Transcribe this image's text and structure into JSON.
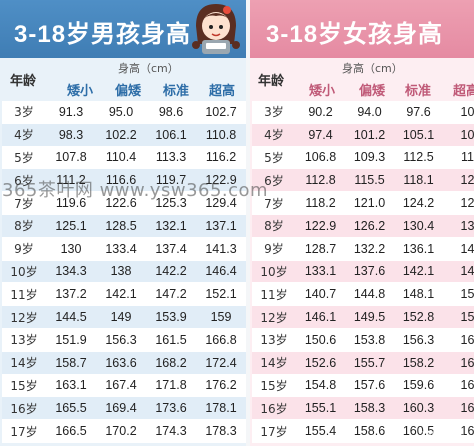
{
  "boys": {
    "title_num": "3-18",
    "title_text": "岁男孩身高",
    "age_header": "年龄",
    "height_label": "身高（cm）",
    "categories": [
      "矮小",
      "偏矮",
      "标准",
      "超高"
    ],
    "rows": [
      {
        "age": "3岁",
        "values": [
          "91.3",
          "95.0",
          "98.6",
          "102.7"
        ]
      },
      {
        "age": "4岁",
        "values": [
          "98.3",
          "102.2",
          "106.1",
          "110.8"
        ]
      },
      {
        "age": "5岁",
        "values": [
          "107.8",
          "110.4",
          "113.3",
          "116.2"
        ]
      },
      {
        "age": "6岁",
        "values": [
          "111.2",
          "116.6",
          "119.7",
          "122.9"
        ]
      },
      {
        "age": "7岁",
        "values": [
          "119.6",
          "122.6",
          "125.3",
          "129.4"
        ]
      },
      {
        "age": "8岁",
        "values": [
          "125.1",
          "128.5",
          "132.1",
          "137.1"
        ]
      },
      {
        "age": "9岁",
        "values": [
          "130",
          "133.4",
          "137.4",
          "141.3"
        ]
      },
      {
        "age": "10岁",
        "values": [
          "134.3",
          "138",
          "142.2",
          "146.4"
        ]
      },
      {
        "age": "11岁",
        "values": [
          "137.2",
          "142.1",
          "147.2",
          "152.1"
        ]
      },
      {
        "age": "12岁",
        "values": [
          "144.5",
          "149",
          "153.9",
          "159"
        ]
      },
      {
        "age": "13岁",
        "values": [
          "151.9",
          "156.3",
          "161.5",
          "166.8"
        ]
      },
      {
        "age": "14岁",
        "values": [
          "158.7",
          "163.6",
          "168.2",
          "172.4"
        ]
      },
      {
        "age": "15岁",
        "values": [
          "163.1",
          "167.4",
          "171.8",
          "176.2"
        ]
      },
      {
        "age": "16岁",
        "values": [
          "165.5",
          "169.4",
          "173.6",
          "178.1"
        ]
      },
      {
        "age": "17岁",
        "values": [
          "166.5",
          "170.2",
          "174.3",
          "178.3"
        ]
      }
    ]
  },
  "girls": {
    "title_num": "3-18",
    "title_text": "岁女孩身高",
    "age_header": "年龄",
    "height_label": "身高（cm）",
    "categories": [
      "矮小",
      "偏矮",
      "标准",
      "超高"
    ],
    "rows": [
      {
        "age": "3岁",
        "values": [
          "90.2",
          "94.0",
          "97.6",
          "10"
        ]
      },
      {
        "age": "4岁",
        "values": [
          "97.4",
          "101.2",
          "105.1",
          "10"
        ]
      },
      {
        "age": "5岁",
        "values": [
          "106.8",
          "109.3",
          "112.5",
          "11"
        ]
      },
      {
        "age": "6岁",
        "values": [
          "112.8",
          "115.5",
          "118.1",
          "12"
        ]
      },
      {
        "age": "7岁",
        "values": [
          "118.2",
          "121.0",
          "124.2",
          "12"
        ]
      },
      {
        "age": "8岁",
        "values": [
          "122.9",
          "126.2",
          "130.4",
          "13"
        ]
      },
      {
        "age": "9岁",
        "values": [
          "128.7",
          "132.2",
          "136.1",
          "14"
        ]
      },
      {
        "age": "10岁",
        "values": [
          "133.1",
          "137.6",
          "142.1",
          "14"
        ]
      },
      {
        "age": "11岁",
        "values": [
          "140.7",
          "144.8",
          "148.1",
          "15"
        ]
      },
      {
        "age": "12岁",
        "values": [
          "146.1",
          "149.5",
          "152.8",
          "15"
        ]
      },
      {
        "age": "13岁",
        "values": [
          "150.6",
          "153.8",
          "156.3",
          "16"
        ]
      },
      {
        "age": "14岁",
        "values": [
          "152.6",
          "155.7",
          "158.2",
          "16"
        ]
      },
      {
        "age": "15岁",
        "values": [
          "154.8",
          "157.6",
          "159.6",
          "16"
        ]
      },
      {
        "age": "16岁",
        "values": [
          "155.1",
          "158.3",
          "160.3",
          "16"
        ]
      },
      {
        "age": "17岁",
        "values": [
          "155.4",
          "158.6",
          "160.5",
          "16"
        ]
      }
    ]
  },
  "watermark": "365茶叶网 www.ysw365.com",
  "corner_mark": "365茶叶网",
  "colors": {
    "boys_header": "#3f7db4",
    "girls_header": "#e58aa2"
  }
}
